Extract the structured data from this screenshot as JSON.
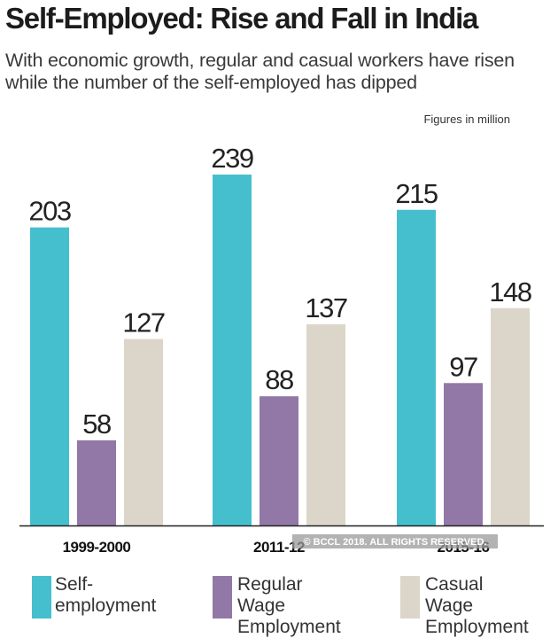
{
  "title": "Self-Employed: Rise and Fall in India",
  "subtitle": "With economic growth, regular and casual workers have risen while the number of the self-employed has dipped",
  "units_note": "Figures in million",
  "copyright": "© BCCL 2018. ALL RIGHTS RESERVED.",
  "colors": {
    "self": "#45bfce",
    "regular": "#9278a6",
    "casual": "#dcd5c9",
    "axis": "#222222"
  },
  "legend": [
    {
      "label": "Self-\nemployment",
      "color": "#45bfce"
    },
    {
      "label": "Regular Wage\nEmployment",
      "color": "#9278a6"
    },
    {
      "label": "Casual Wage\nEmployment",
      "color": "#dcd5c9"
    }
  ],
  "chart_data": {
    "type": "bar",
    "title": "Self-Employed: Rise and Fall in India",
    "xlabel": "",
    "ylabel": "Figures in million",
    "ylim": [
      0,
      239
    ],
    "categories": [
      "1999-2000",
      "2011-12",
      "2015-16"
    ],
    "series": [
      {
        "name": "Self-employment",
        "values": [
          203,
          239,
          215
        ]
      },
      {
        "name": "Regular Wage Employment",
        "values": [
          58,
          88,
          97
        ]
      },
      {
        "name": "Casual Wage Employment",
        "values": [
          127,
          137,
          148
        ]
      }
    ]
  }
}
